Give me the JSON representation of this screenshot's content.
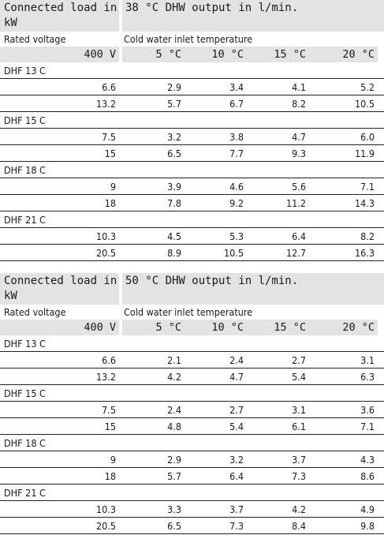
{
  "tables": [
    {
      "load_header": "Connected load in kW",
      "output_header": "38 °C DHW output in l/min.",
      "rated_voltage_label": "Rated voltage",
      "inlet_label": "Cold water inlet temperature",
      "voltage": "400 V",
      "temps": [
        "5 °C",
        "10 °C",
        "15 °C",
        "20 °C"
      ],
      "models": [
        {
          "name": "DHF 13 C",
          "rows": [
            [
              "6.6",
              "2.9",
              "3.4",
              "4.1",
              "5.2"
            ],
            [
              "13.2",
              "5.7",
              "6.7",
              "8.2",
              "10.5"
            ]
          ]
        },
        {
          "name": "DHF 15 C",
          "rows": [
            [
              "7.5",
              "3.2",
              "3.8",
              "4.7",
              "6.0"
            ],
            [
              "15",
              "6.5",
              "7.7",
              "9.3",
              "11.9"
            ]
          ]
        },
        {
          "name": "DHF 18 C",
          "rows": [
            [
              "9",
              "3.9",
              "4.6",
              "5.6",
              "7.1"
            ],
            [
              "18",
              "7.8",
              "9.2",
              "11.2",
              "14.3"
            ]
          ]
        },
        {
          "name": "DHF 21 C",
          "rows": [
            [
              "10.3",
              "4.5",
              "5.3",
              "6.4",
              "8.2"
            ],
            [
              "20.5",
              "8.9",
              "10.5",
              "12.7",
              "16.3"
            ]
          ]
        }
      ]
    },
    {
      "load_header": "Connected load in kW",
      "output_header": "50 °C DHW output in l/min.",
      "rated_voltage_label": "Rated voltage",
      "inlet_label": "Cold water inlet temperature",
      "voltage": "400 V",
      "temps": [
        "5 °C",
        "10 °C",
        "15 °C",
        "20 °C"
      ],
      "models": [
        {
          "name": "DHF 13 C",
          "rows": [
            [
              "6.6",
              "2.1",
              "2.4",
              "2.7",
              "3.1"
            ],
            [
              "13.2",
              "4.2",
              "4.7",
              "5.4",
              "6.3"
            ]
          ]
        },
        {
          "name": "DHF 15 C",
          "rows": [
            [
              "7.5",
              "2.4",
              "2.7",
              "3.1",
              "3.6"
            ],
            [
              "15",
              "4.8",
              "5.4",
              "6.1",
              "7.1"
            ]
          ]
        },
        {
          "name": "DHF 18 C",
          "rows": [
            [
              "9",
              "2.9",
              "3.2",
              "3.7",
              "4.3"
            ],
            [
              "18",
              "5.7",
              "6.4",
              "7.3",
              "8.6"
            ]
          ]
        },
        {
          "name": "DHF 21 C",
          "rows": [
            [
              "10.3",
              "3.3",
              "3.7",
              "4.2",
              "4.9"
            ],
            [
              "20.5",
              "6.5",
              "7.3",
              "8.4",
              "9.8"
            ]
          ]
        }
      ]
    }
  ]
}
